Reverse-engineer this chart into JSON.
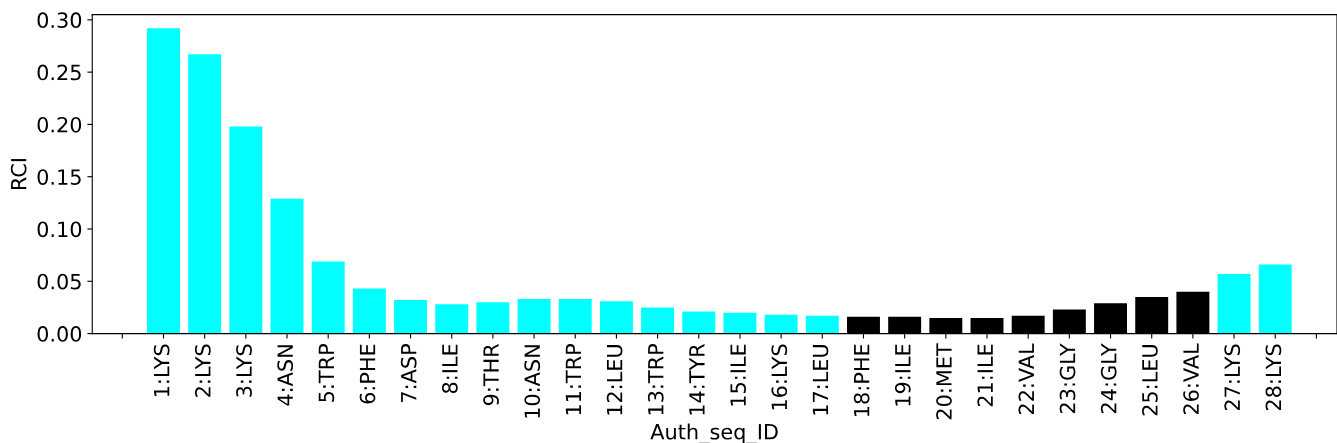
{
  "chart_data": {
    "type": "bar",
    "xlabel": "Auth_seq_ID",
    "ylabel": "RCI",
    "categories": [
      null,
      "1:LYS",
      "2:LYS",
      "3:LYS",
      "4:ASN",
      "5:TRP",
      "6:PHE",
      "7:ASP",
      "8:ILE",
      "9:THR",
      "10:ASN",
      "11:TRP",
      "12:LEU",
      "13:TRP",
      "14:TYR",
      "15:ILE",
      "16:LYS",
      "17:LEU",
      "18:PHE",
      "19:ILE",
      "20:MET",
      "21:ILE",
      "22:VAL",
      "23:GLY",
      "24:GLY",
      "25:LEU",
      "26:VAL",
      "27:LYS",
      "28:LYS",
      null
    ],
    "values": [
      null,
      0.292,
      0.267,
      0.198,
      0.129,
      0.069,
      0.043,
      0.032,
      0.028,
      0.03,
      0.033,
      0.033,
      0.031,
      0.025,
      0.021,
      0.02,
      0.018,
      0.017,
      0.016,
      0.016,
      0.015,
      0.015,
      0.017,
      0.023,
      0.029,
      0.035,
      0.04,
      0.057,
      0.066,
      null
    ],
    "colors": [
      null,
      "#00ffff",
      "#00ffff",
      "#00ffff",
      "#00ffff",
      "#00ffff",
      "#00ffff",
      "#00ffff",
      "#00ffff",
      "#00ffff",
      "#00ffff",
      "#00ffff",
      "#00ffff",
      "#00ffff",
      "#00ffff",
      "#00ffff",
      "#00ffff",
      "#00ffff",
      "#000000",
      "#000000",
      "#000000",
      "#000000",
      "#000000",
      "#000000",
      "#000000",
      "#000000",
      "#000000",
      "#00ffff",
      "#00ffff",
      null
    ],
    "ylim": [
      0,
      0.305
    ],
    "yticks": [
      {
        "value": 0,
        "label": "0.00"
      },
      {
        "value": 0.05,
        "label": "0.05"
      },
      {
        "value": 0.1,
        "label": "0.10"
      },
      {
        "value": 0.15,
        "label": "0.15"
      },
      {
        "value": 0.2,
        "label": "0.20"
      },
      {
        "value": 0.25,
        "label": "0.25"
      },
      {
        "value": 0.3,
        "label": "0.30"
      }
    ],
    "grid": false,
    "legend": false
  }
}
